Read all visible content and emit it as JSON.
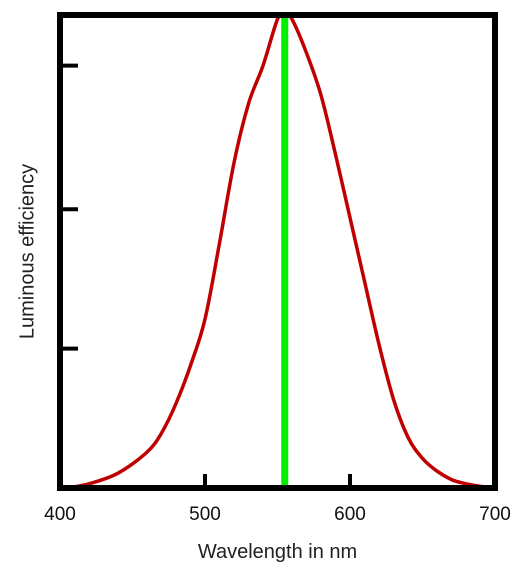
{
  "chart_data": {
    "type": "line",
    "title": "",
    "xlabel": "Wavelength in nm",
    "ylabel": "Luminous efficiency",
    "xlim": [
      400,
      700
    ],
    "ylim": [
      0,
      1.12
    ],
    "x_ticks": [
      400,
      500,
      600,
      700
    ],
    "x_tick_labels": [
      "400",
      "500",
      "600",
      "700"
    ],
    "y_ticks": [
      0.33,
      0.66,
      1.0
    ],
    "y_tick_labels_shown": false,
    "grid": false,
    "series": [
      {
        "color": "#c00000",
        "x": [
          405,
          420,
          440,
          460,
          470,
          480,
          490,
          500,
          510,
          520,
          530,
          540,
          550,
          555,
          560,
          570,
          580,
          590,
          600,
          610,
          620,
          630,
          640,
          650,
          660,
          670,
          680,
          690,
          700
        ],
        "y": [
          0.0,
          0.01,
          0.035,
          0.085,
          0.13,
          0.2,
          0.29,
          0.4,
          0.58,
          0.77,
          0.91,
          1.0,
          1.11,
          1.12,
          1.11,
          1.03,
          0.93,
          0.79,
          0.64,
          0.49,
          0.34,
          0.21,
          0.12,
          0.07,
          0.04,
          0.02,
          0.01,
          0.004,
          0.0
        ]
      }
    ],
    "annotations": [
      {
        "type": "vertical_line",
        "x": 555,
        "color": "#00ee00"
      }
    ]
  }
}
